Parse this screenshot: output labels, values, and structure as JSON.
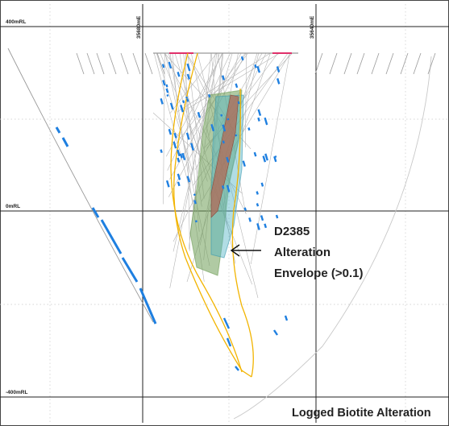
{
  "section": {
    "rl_labels": {
      "top": "400mRL",
      "mid": "0mRL",
      "bottom": "-400mRL"
    },
    "easting_labels": {
      "left": "35680mE",
      "right": "35640mE"
    },
    "annotation": {
      "line1": "D2385",
      "line2": "Alteration",
      "line3": "Envelope (>0.1)"
    },
    "caption": "Logged Biotite Alteration"
  },
  "colors": {
    "grid_major": "#222222",
    "grid_minor": "#bdbdbd",
    "drillhole": "#9e9e9e",
    "alteration_logged": "#1e7fe0",
    "envelope_yellow": "#f2b400",
    "envelope_green": "#6f9e57",
    "envelope_cyan": "#52b4c6",
    "envelope_red": "#b06a55",
    "collar_red": "#e0306a"
  }
}
